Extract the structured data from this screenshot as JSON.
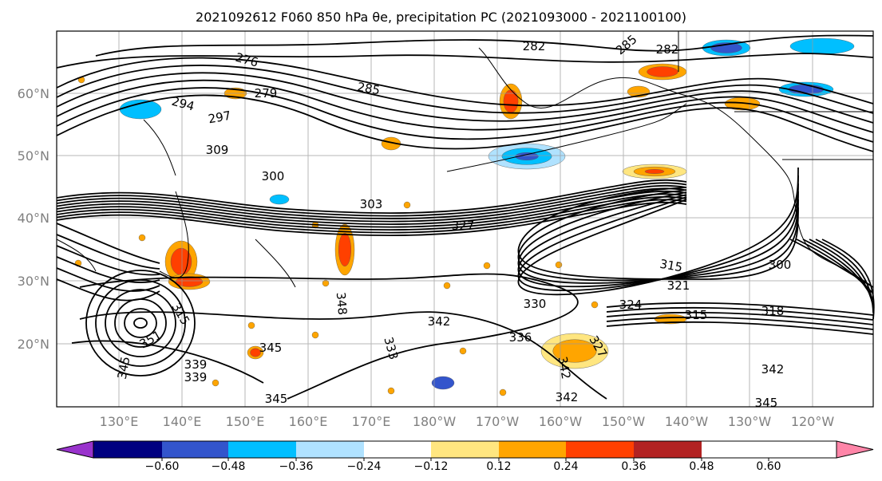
{
  "title": "2021092612 F060 850 hPa θe, precipitation PC (2021093000 - 2021100100)",
  "map": {
    "lat_ticks": [
      "60°N",
      "50°N",
      "40°N",
      "30°N",
      "20°N"
    ],
    "lon_ticks": [
      "130°E",
      "140°E",
      "150°E",
      "160°E",
      "170°E",
      "180°W",
      "170°W",
      "160°W",
      "150°W",
      "140°W",
      "130°W",
      "120°W"
    ],
    "contour_labels": [
      "276",
      "279",
      "282",
      "285",
      "282",
      "285",
      "294",
      "297",
      "309",
      "300",
      "303",
      "327",
      "315",
      "300",
      "321",
      "330",
      "324",
      "315",
      "318",
      "315",
      "348",
      "342",
      "333",
      "336",
      "327",
      "339",
      "342",
      "351",
      "345",
      "342",
      "339",
      "345",
      "345",
      "342",
      "345"
    ]
  },
  "colorbar": {
    "colors": [
      "#9933cc",
      "#000080",
      "#3355cc",
      "#00bfff",
      "#b0e2ff",
      "#ffffff",
      "#ffe680",
      "#ffa500",
      "#ff4000",
      "#b22222",
      "#ff85a8"
    ],
    "ticks": [
      "−0.60",
      "−0.48",
      "−0.36",
      "−0.24",
      "−0.12",
      "0.12",
      "0.24",
      "0.36",
      "0.48",
      "0.60"
    ]
  }
}
